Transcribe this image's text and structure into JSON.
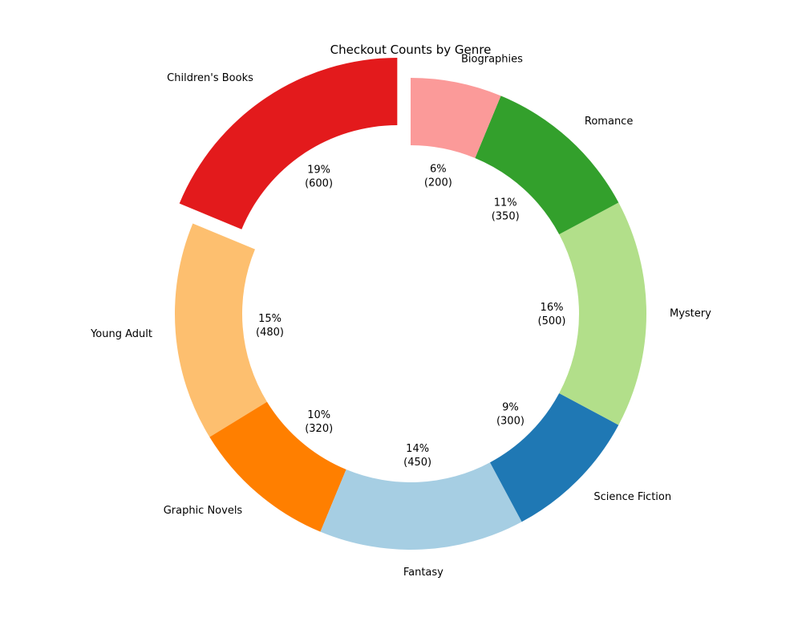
{
  "chart_data": {
    "type": "pie",
    "variant": "donut",
    "title": "Checkout Counts by Genre",
    "start_angle_deg": 90,
    "counterclockwise": true,
    "exploded": [
      "Children's Books"
    ],
    "slices": [
      {
        "label": "Children's Books",
        "value": 600,
        "pct_label": "19%",
        "value_label": "(600)",
        "color": "#e31a1c"
      },
      {
        "label": "Young Adult",
        "value": 480,
        "pct_label": "15%",
        "value_label": "(480)",
        "color": "#fdbf6f"
      },
      {
        "label": "Graphic Novels",
        "value": 320,
        "pct_label": "10%",
        "value_label": "(320)",
        "color": "#ff7f00"
      },
      {
        "label": "Fantasy",
        "value": 450,
        "pct_label": "14%",
        "value_label": "(450)",
        "color": "#a6cee3"
      },
      {
        "label": "Science Fiction",
        "value": 300,
        "pct_label": "9%",
        "value_label": "(300)",
        "color": "#1f78b4"
      },
      {
        "label": "Mystery",
        "value": 500,
        "pct_label": "16%",
        "value_label": "(500)",
        "color": "#b2df8a"
      },
      {
        "label": "Romance",
        "value": 350,
        "pct_label": "11%",
        "value_label": "(350)",
        "color": "#33a02c"
      },
      {
        "label": "Biographies",
        "value": 200,
        "pct_label": "6%",
        "value_label": "(200)",
        "color": "#fb9a99"
      }
    ]
  }
}
